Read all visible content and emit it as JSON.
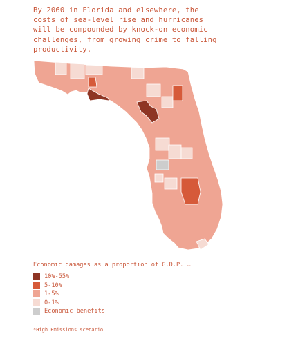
{
  "headline": "By 2060 in Florida and elsewhere, the\ncosts of sea-level rise and hurricanes\nwill be compounded by knock-on economic\nchallenges, from growing crime to falling\nproductivity.",
  "legend": {
    "title": "Economic damages as a proportion of G.D.P. …",
    "items": [
      {
        "label": "10%-55%",
        "color": "#8e3524"
      },
      {
        "label": "5-10%",
        "color": "#d65a39"
      },
      {
        "label": "1-5%",
        "color": "#efa593"
      },
      {
        "label": "0-1%",
        "color": "#f6dbd3"
      },
      {
        "label": "Economic benefits",
        "color": "#cdcdcd"
      }
    ]
  },
  "footnote": "*High Emissions scenario",
  "map": {
    "region": "Florida counties",
    "base_color": "#efa593",
    "border_color": "#ffffff"
  }
}
